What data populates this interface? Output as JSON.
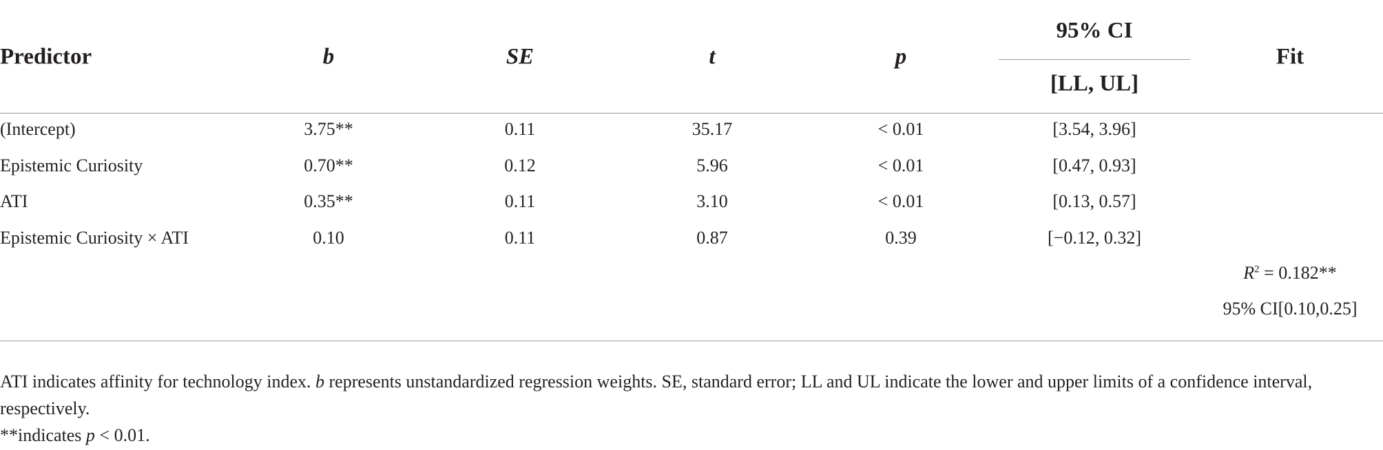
{
  "table": {
    "header": {
      "predictor": "Predictor",
      "columns": [
        "b",
        "SE",
        "t",
        "p"
      ],
      "ci_group": "95% CI",
      "ci_sub": "[LL, UL]",
      "fit": "Fit"
    },
    "rows": [
      [
        "(Intercept)",
        "3.75**",
        "0.11",
        "35.17",
        "< 0.01",
        "[3.54, 3.96]"
      ],
      [
        "Epistemic Curiosity",
        "0.70**",
        "0.12",
        "5.96",
        "< 0.01",
        "[0.47, 0.93]"
      ],
      [
        "ATI",
        "0.35**",
        "0.11",
        "3.10",
        "< 0.01",
        "[0.13, 0.57]"
      ],
      [
        "Epistemic Curiosity × ATI",
        "0.10",
        "0.11",
        "0.87",
        "0.39",
        "[−0.12, 0.32]"
      ]
    ],
    "fit": {
      "r2": [
        "R",
        "2",
        " = 0.182**"
      ],
      "ci": "95% CI[0.10,0.25]"
    }
  },
  "notes": [
    [
      "ATI indicates affinity for technology index. ",
      "b",
      " represents unstandardized regression weights. SE, standard error; LL and UL indicate the lower and upper limits of a confidence interval, respectively."
    ],
    [
      "**indicates ",
      "p",
      " < 0.01."
    ]
  ]
}
